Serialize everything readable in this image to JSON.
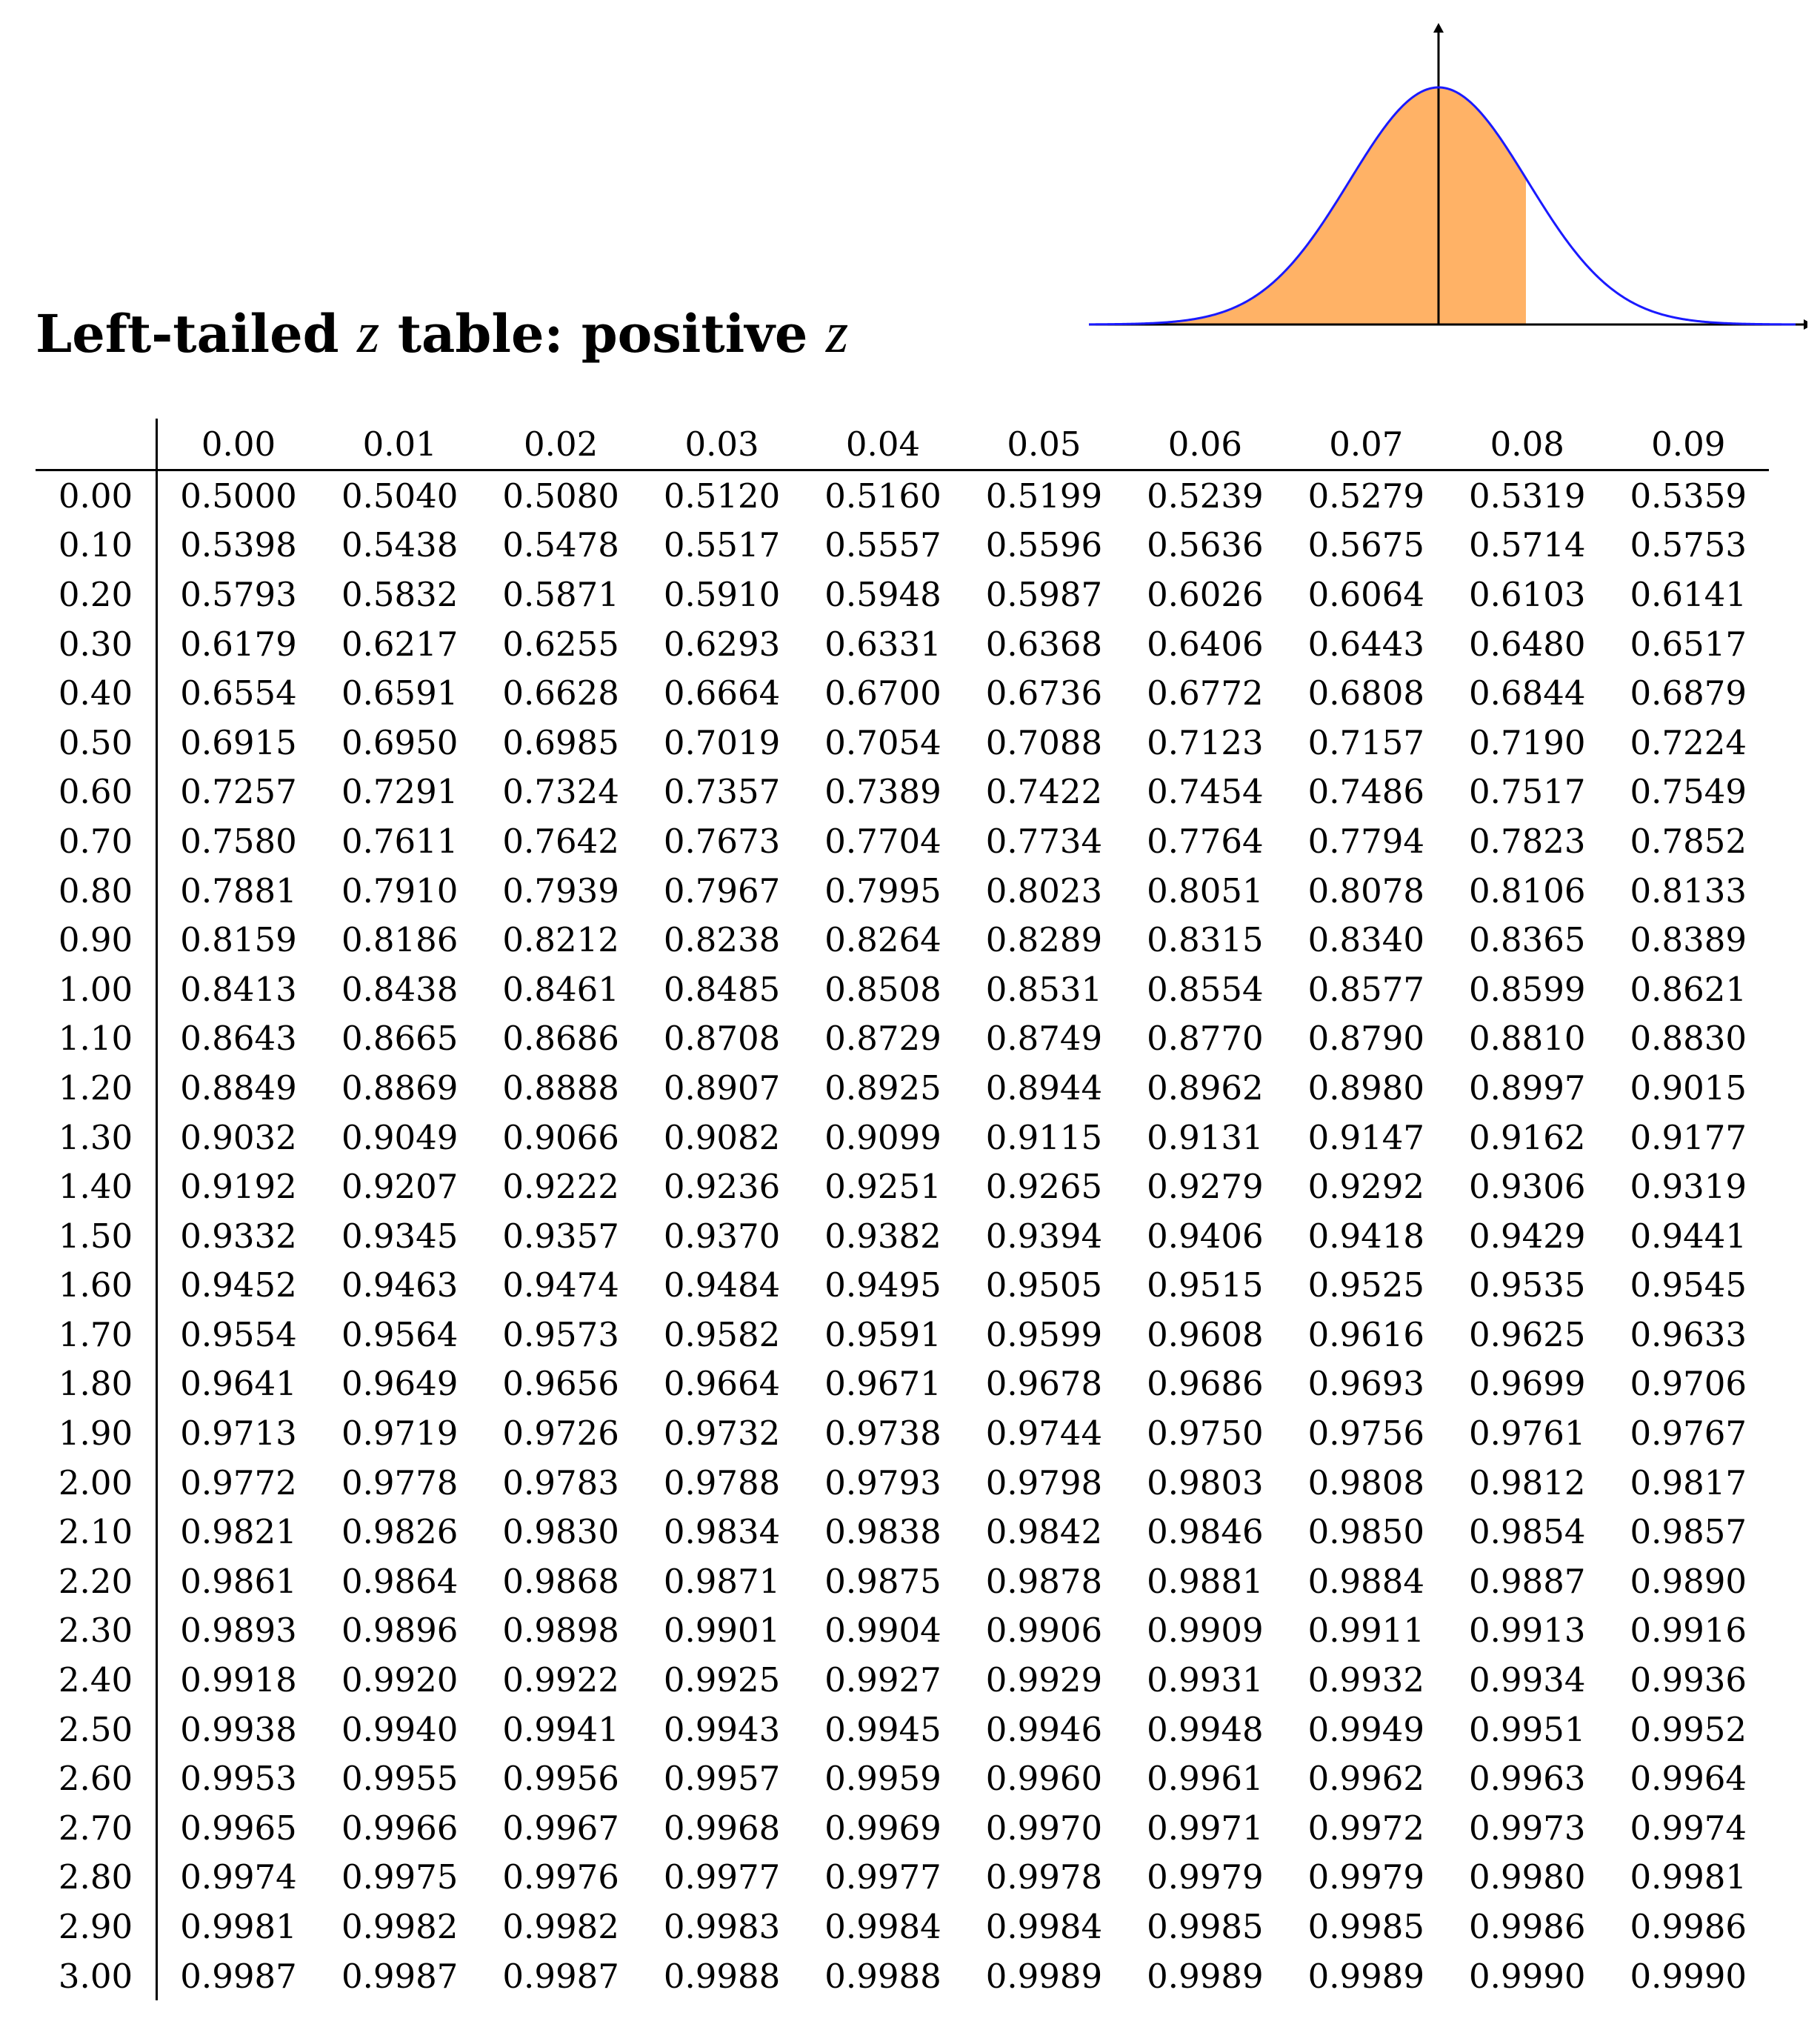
{
  "title": {
    "prefix": "Left-tailed ",
    "var1": "z",
    "middle": " table: positive ",
    "var2": "z"
  },
  "figure": {
    "curve_color": "#1a1aff",
    "fill_color": "#ffb266",
    "axis_color": "#000000"
  },
  "columns": [
    "0.00",
    "0.01",
    "0.02",
    "0.03",
    "0.04",
    "0.05",
    "0.06",
    "0.07",
    "0.08",
    "0.09"
  ],
  "rows": [
    {
      "z": "0.00",
      "values": [
        "0.5000",
        "0.5040",
        "0.5080",
        "0.5120",
        "0.5160",
        "0.5199",
        "0.5239",
        "0.5279",
        "0.5319",
        "0.5359"
      ]
    },
    {
      "z": "0.10",
      "values": [
        "0.5398",
        "0.5438",
        "0.5478",
        "0.5517",
        "0.5557",
        "0.5596",
        "0.5636",
        "0.5675",
        "0.5714",
        "0.5753"
      ]
    },
    {
      "z": "0.20",
      "values": [
        "0.5793",
        "0.5832",
        "0.5871",
        "0.5910",
        "0.5948",
        "0.5987",
        "0.6026",
        "0.6064",
        "0.6103",
        "0.6141"
      ]
    },
    {
      "z": "0.30",
      "values": [
        "0.6179",
        "0.6217",
        "0.6255",
        "0.6293",
        "0.6331",
        "0.6368",
        "0.6406",
        "0.6443",
        "0.6480",
        "0.6517"
      ]
    },
    {
      "z": "0.40",
      "values": [
        "0.6554",
        "0.6591",
        "0.6628",
        "0.6664",
        "0.6700",
        "0.6736",
        "0.6772",
        "0.6808",
        "0.6844",
        "0.6879"
      ]
    },
    {
      "z": "0.50",
      "values": [
        "0.6915",
        "0.6950",
        "0.6985",
        "0.7019",
        "0.7054",
        "0.7088",
        "0.7123",
        "0.7157",
        "0.7190",
        "0.7224"
      ]
    },
    {
      "z": "0.60",
      "values": [
        "0.7257",
        "0.7291",
        "0.7324",
        "0.7357",
        "0.7389",
        "0.7422",
        "0.7454",
        "0.7486",
        "0.7517",
        "0.7549"
      ]
    },
    {
      "z": "0.70",
      "values": [
        "0.7580",
        "0.7611",
        "0.7642",
        "0.7673",
        "0.7704",
        "0.7734",
        "0.7764",
        "0.7794",
        "0.7823",
        "0.7852"
      ]
    },
    {
      "z": "0.80",
      "values": [
        "0.7881",
        "0.7910",
        "0.7939",
        "0.7967",
        "0.7995",
        "0.8023",
        "0.8051",
        "0.8078",
        "0.8106",
        "0.8133"
      ]
    },
    {
      "z": "0.90",
      "values": [
        "0.8159",
        "0.8186",
        "0.8212",
        "0.8238",
        "0.8264",
        "0.8289",
        "0.8315",
        "0.8340",
        "0.8365",
        "0.8389"
      ]
    },
    {
      "z": "1.00",
      "values": [
        "0.8413",
        "0.8438",
        "0.8461",
        "0.8485",
        "0.8508",
        "0.8531",
        "0.8554",
        "0.8577",
        "0.8599",
        "0.8621"
      ]
    },
    {
      "z": "1.10",
      "values": [
        "0.8643",
        "0.8665",
        "0.8686",
        "0.8708",
        "0.8729",
        "0.8749",
        "0.8770",
        "0.8790",
        "0.8810",
        "0.8830"
      ]
    },
    {
      "z": "1.20",
      "values": [
        "0.8849",
        "0.8869",
        "0.8888",
        "0.8907",
        "0.8925",
        "0.8944",
        "0.8962",
        "0.8980",
        "0.8997",
        "0.9015"
      ]
    },
    {
      "z": "1.30",
      "values": [
        "0.9032",
        "0.9049",
        "0.9066",
        "0.9082",
        "0.9099",
        "0.9115",
        "0.9131",
        "0.9147",
        "0.9162",
        "0.9177"
      ]
    },
    {
      "z": "1.40",
      "values": [
        "0.9192",
        "0.9207",
        "0.9222",
        "0.9236",
        "0.9251",
        "0.9265",
        "0.9279",
        "0.9292",
        "0.9306",
        "0.9319"
      ]
    },
    {
      "z": "1.50",
      "values": [
        "0.9332",
        "0.9345",
        "0.9357",
        "0.9370",
        "0.9382",
        "0.9394",
        "0.9406",
        "0.9418",
        "0.9429",
        "0.9441"
      ]
    },
    {
      "z": "1.60",
      "values": [
        "0.9452",
        "0.9463",
        "0.9474",
        "0.9484",
        "0.9495",
        "0.9505",
        "0.9515",
        "0.9525",
        "0.9535",
        "0.9545"
      ]
    },
    {
      "z": "1.70",
      "values": [
        "0.9554",
        "0.9564",
        "0.9573",
        "0.9582",
        "0.9591",
        "0.9599",
        "0.9608",
        "0.9616",
        "0.9625",
        "0.9633"
      ]
    },
    {
      "z": "1.80",
      "values": [
        "0.9641",
        "0.9649",
        "0.9656",
        "0.9664",
        "0.9671",
        "0.9678",
        "0.9686",
        "0.9693",
        "0.9699",
        "0.9706"
      ]
    },
    {
      "z": "1.90",
      "values": [
        "0.9713",
        "0.9719",
        "0.9726",
        "0.9732",
        "0.9738",
        "0.9744",
        "0.9750",
        "0.9756",
        "0.9761",
        "0.9767"
      ]
    },
    {
      "z": "2.00",
      "values": [
        "0.9772",
        "0.9778",
        "0.9783",
        "0.9788",
        "0.9793",
        "0.9798",
        "0.9803",
        "0.9808",
        "0.9812",
        "0.9817"
      ]
    },
    {
      "z": "2.10",
      "values": [
        "0.9821",
        "0.9826",
        "0.9830",
        "0.9834",
        "0.9838",
        "0.9842",
        "0.9846",
        "0.9850",
        "0.9854",
        "0.9857"
      ]
    },
    {
      "z": "2.20",
      "values": [
        "0.9861",
        "0.9864",
        "0.9868",
        "0.9871",
        "0.9875",
        "0.9878",
        "0.9881",
        "0.9884",
        "0.9887",
        "0.9890"
      ]
    },
    {
      "z": "2.30",
      "values": [
        "0.9893",
        "0.9896",
        "0.9898",
        "0.9901",
        "0.9904",
        "0.9906",
        "0.9909",
        "0.9911",
        "0.9913",
        "0.9916"
      ]
    },
    {
      "z": "2.40",
      "values": [
        "0.9918",
        "0.9920",
        "0.9922",
        "0.9925",
        "0.9927",
        "0.9929",
        "0.9931",
        "0.9932",
        "0.9934",
        "0.9936"
      ]
    },
    {
      "z": "2.50",
      "values": [
        "0.9938",
        "0.9940",
        "0.9941",
        "0.9943",
        "0.9945",
        "0.9946",
        "0.9948",
        "0.9949",
        "0.9951",
        "0.9952"
      ]
    },
    {
      "z": "2.60",
      "values": [
        "0.9953",
        "0.9955",
        "0.9956",
        "0.9957",
        "0.9959",
        "0.9960",
        "0.9961",
        "0.9962",
        "0.9963",
        "0.9964"
      ]
    },
    {
      "z": "2.70",
      "values": [
        "0.9965",
        "0.9966",
        "0.9967",
        "0.9968",
        "0.9969",
        "0.9970",
        "0.9971",
        "0.9972",
        "0.9973",
        "0.9974"
      ]
    },
    {
      "z": "2.80",
      "values": [
        "0.9974",
        "0.9975",
        "0.9976",
        "0.9977",
        "0.9977",
        "0.9978",
        "0.9979",
        "0.9979",
        "0.9980",
        "0.9981"
      ]
    },
    {
      "z": "2.90",
      "values": [
        "0.9981",
        "0.9982",
        "0.9982",
        "0.9983",
        "0.9984",
        "0.9984",
        "0.9985",
        "0.9985",
        "0.9986",
        "0.9986"
      ]
    },
    {
      "z": "3.00",
      "values": [
        "0.9987",
        "0.9987",
        "0.9987",
        "0.9988",
        "0.9988",
        "0.9989",
        "0.9989",
        "0.9989",
        "0.9990",
        "0.9990"
      ]
    }
  ]
}
